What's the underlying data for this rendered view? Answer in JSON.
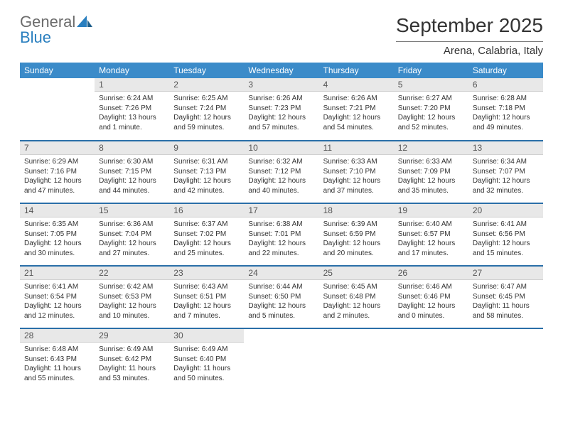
{
  "logo": {
    "line1": "General",
    "line2": "Blue"
  },
  "title": "September 2025",
  "location": "Arena, Calabria, Italy",
  "colors": {
    "header_bg": "#3b8bc9",
    "header_fg": "#ffffff",
    "daynum_bg": "#e8e8e8",
    "row_border": "#2a6fa8",
    "logo_gray": "#6b6b6b",
    "logo_blue": "#2a7fbf"
  },
  "typography": {
    "title_fontsize": 28,
    "location_fontsize": 15,
    "dayhead_fontsize": 12,
    "daynum_fontsize": 12,
    "body_fontsize": 10
  },
  "dayNames": [
    "Sunday",
    "Monday",
    "Tuesday",
    "Wednesday",
    "Thursday",
    "Friday",
    "Saturday"
  ],
  "weeks": [
    [
      {
        "num": "",
        "sunrise": "",
        "sunset": "",
        "daylight": ""
      },
      {
        "num": "1",
        "sunrise": "Sunrise: 6:24 AM",
        "sunset": "Sunset: 7:26 PM",
        "daylight": "Daylight: 13 hours and 1 minute."
      },
      {
        "num": "2",
        "sunrise": "Sunrise: 6:25 AM",
        "sunset": "Sunset: 7:24 PM",
        "daylight": "Daylight: 12 hours and 59 minutes."
      },
      {
        "num": "3",
        "sunrise": "Sunrise: 6:26 AM",
        "sunset": "Sunset: 7:23 PM",
        "daylight": "Daylight: 12 hours and 57 minutes."
      },
      {
        "num": "4",
        "sunrise": "Sunrise: 6:26 AM",
        "sunset": "Sunset: 7:21 PM",
        "daylight": "Daylight: 12 hours and 54 minutes."
      },
      {
        "num": "5",
        "sunrise": "Sunrise: 6:27 AM",
        "sunset": "Sunset: 7:20 PM",
        "daylight": "Daylight: 12 hours and 52 minutes."
      },
      {
        "num": "6",
        "sunrise": "Sunrise: 6:28 AM",
        "sunset": "Sunset: 7:18 PM",
        "daylight": "Daylight: 12 hours and 49 minutes."
      }
    ],
    [
      {
        "num": "7",
        "sunrise": "Sunrise: 6:29 AM",
        "sunset": "Sunset: 7:16 PM",
        "daylight": "Daylight: 12 hours and 47 minutes."
      },
      {
        "num": "8",
        "sunrise": "Sunrise: 6:30 AM",
        "sunset": "Sunset: 7:15 PM",
        "daylight": "Daylight: 12 hours and 44 minutes."
      },
      {
        "num": "9",
        "sunrise": "Sunrise: 6:31 AM",
        "sunset": "Sunset: 7:13 PM",
        "daylight": "Daylight: 12 hours and 42 minutes."
      },
      {
        "num": "10",
        "sunrise": "Sunrise: 6:32 AM",
        "sunset": "Sunset: 7:12 PM",
        "daylight": "Daylight: 12 hours and 40 minutes."
      },
      {
        "num": "11",
        "sunrise": "Sunrise: 6:33 AM",
        "sunset": "Sunset: 7:10 PM",
        "daylight": "Daylight: 12 hours and 37 minutes."
      },
      {
        "num": "12",
        "sunrise": "Sunrise: 6:33 AM",
        "sunset": "Sunset: 7:09 PM",
        "daylight": "Daylight: 12 hours and 35 minutes."
      },
      {
        "num": "13",
        "sunrise": "Sunrise: 6:34 AM",
        "sunset": "Sunset: 7:07 PM",
        "daylight": "Daylight: 12 hours and 32 minutes."
      }
    ],
    [
      {
        "num": "14",
        "sunrise": "Sunrise: 6:35 AM",
        "sunset": "Sunset: 7:05 PM",
        "daylight": "Daylight: 12 hours and 30 minutes."
      },
      {
        "num": "15",
        "sunrise": "Sunrise: 6:36 AM",
        "sunset": "Sunset: 7:04 PM",
        "daylight": "Daylight: 12 hours and 27 minutes."
      },
      {
        "num": "16",
        "sunrise": "Sunrise: 6:37 AM",
        "sunset": "Sunset: 7:02 PM",
        "daylight": "Daylight: 12 hours and 25 minutes."
      },
      {
        "num": "17",
        "sunrise": "Sunrise: 6:38 AM",
        "sunset": "Sunset: 7:01 PM",
        "daylight": "Daylight: 12 hours and 22 minutes."
      },
      {
        "num": "18",
        "sunrise": "Sunrise: 6:39 AM",
        "sunset": "Sunset: 6:59 PM",
        "daylight": "Daylight: 12 hours and 20 minutes."
      },
      {
        "num": "19",
        "sunrise": "Sunrise: 6:40 AM",
        "sunset": "Sunset: 6:57 PM",
        "daylight": "Daylight: 12 hours and 17 minutes."
      },
      {
        "num": "20",
        "sunrise": "Sunrise: 6:41 AM",
        "sunset": "Sunset: 6:56 PM",
        "daylight": "Daylight: 12 hours and 15 minutes."
      }
    ],
    [
      {
        "num": "21",
        "sunrise": "Sunrise: 6:41 AM",
        "sunset": "Sunset: 6:54 PM",
        "daylight": "Daylight: 12 hours and 12 minutes."
      },
      {
        "num": "22",
        "sunrise": "Sunrise: 6:42 AM",
        "sunset": "Sunset: 6:53 PM",
        "daylight": "Daylight: 12 hours and 10 minutes."
      },
      {
        "num": "23",
        "sunrise": "Sunrise: 6:43 AM",
        "sunset": "Sunset: 6:51 PM",
        "daylight": "Daylight: 12 hours and 7 minutes."
      },
      {
        "num": "24",
        "sunrise": "Sunrise: 6:44 AM",
        "sunset": "Sunset: 6:50 PM",
        "daylight": "Daylight: 12 hours and 5 minutes."
      },
      {
        "num": "25",
        "sunrise": "Sunrise: 6:45 AM",
        "sunset": "Sunset: 6:48 PM",
        "daylight": "Daylight: 12 hours and 2 minutes."
      },
      {
        "num": "26",
        "sunrise": "Sunrise: 6:46 AM",
        "sunset": "Sunset: 6:46 PM",
        "daylight": "Daylight: 12 hours and 0 minutes."
      },
      {
        "num": "27",
        "sunrise": "Sunrise: 6:47 AM",
        "sunset": "Sunset: 6:45 PM",
        "daylight": "Daylight: 11 hours and 58 minutes."
      }
    ],
    [
      {
        "num": "28",
        "sunrise": "Sunrise: 6:48 AM",
        "sunset": "Sunset: 6:43 PM",
        "daylight": "Daylight: 11 hours and 55 minutes."
      },
      {
        "num": "29",
        "sunrise": "Sunrise: 6:49 AM",
        "sunset": "Sunset: 6:42 PM",
        "daylight": "Daylight: 11 hours and 53 minutes."
      },
      {
        "num": "30",
        "sunrise": "Sunrise: 6:49 AM",
        "sunset": "Sunset: 6:40 PM",
        "daylight": "Daylight: 11 hours and 50 minutes."
      },
      {
        "num": "",
        "sunrise": "",
        "sunset": "",
        "daylight": ""
      },
      {
        "num": "",
        "sunrise": "",
        "sunset": "",
        "daylight": ""
      },
      {
        "num": "",
        "sunrise": "",
        "sunset": "",
        "daylight": ""
      },
      {
        "num": "",
        "sunrise": "",
        "sunset": "",
        "daylight": ""
      }
    ]
  ]
}
